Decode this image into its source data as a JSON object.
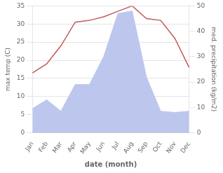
{
  "chart_data": {
    "type": "line",
    "categories": [
      "Jan",
      "Feb",
      "Mar",
      "Apr",
      "May",
      "Jun",
      "Jul",
      "Aug",
      "Sep",
      "Oct",
      "Nov",
      "Dec"
    ],
    "series": [
      {
        "type": "area",
        "axis": "y2",
        "color": "#bdc7ed",
        "values": [
          9.5,
          13.0,
          8.5,
          19.0,
          19.0,
          30.0,
          47.0,
          48.0,
          22.0,
          8.5,
          8.0,
          8.5
        ]
      },
      {
        "type": "line",
        "color": "#c45a5a",
        "values": [
          16.5,
          19.0,
          24.0,
          30.5,
          31.0,
          32.0,
          33.5,
          35.0,
          31.5,
          31.0,
          26.0,
          18.0
        ]
      }
    ],
    "x_label": "date (month)",
    "y_label": "max temp (C)",
    "y2_label": "med. precipitation (kg/m2)",
    "ylim": [
      0,
      35
    ],
    "yticks": [
      0,
      5,
      10,
      15,
      20,
      25,
      30,
      35
    ],
    "y2lim": [
      0,
      50
    ],
    "y2ticks": [
      0,
      10,
      20,
      30,
      40,
      50
    ],
    "grid": true
  }
}
